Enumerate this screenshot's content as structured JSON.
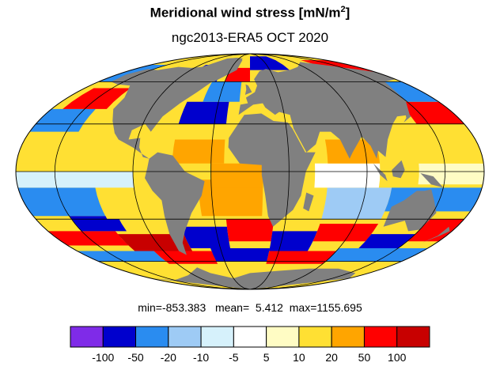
{
  "header": {
    "title_main": "Meridional wind stress [mN/m",
    "title_sup": "2",
    "title_end": "]",
    "subtitle": "ngc2013-ERA5 OCT 2020"
  },
  "stats": {
    "min_label": "min=",
    "min": "-853.383",
    "mean_label": "mean=",
    "mean": "5.412",
    "max_label": "max=",
    "max": "1155.695"
  },
  "colors": {
    "land": "#808080",
    "grid": "#000000"
  },
  "colorbar": {
    "bins": [
      {
        "color": "#7f2be8"
      },
      {
        "color": "#0000cd"
      },
      {
        "color": "#2a8cf0"
      },
      {
        "color": "#9ecbf5"
      },
      {
        "color": "#d6f1fb"
      },
      {
        "color": "#ffffff"
      },
      {
        "color": "#fffcc4"
      },
      {
        "color": "#ffe033"
      },
      {
        "color": "#ffa500"
      },
      {
        "color": "#ff0000"
      },
      {
        "color": "#c80000"
      }
    ],
    "ticks": [
      "-100",
      "-50",
      "-20",
      "-10",
      "-5",
      "5",
      "10",
      "20",
      "50",
      "100"
    ]
  },
  "map": {
    "projection": "mollweide",
    "central_longitude": 0,
    "gridlines": true
  }
}
